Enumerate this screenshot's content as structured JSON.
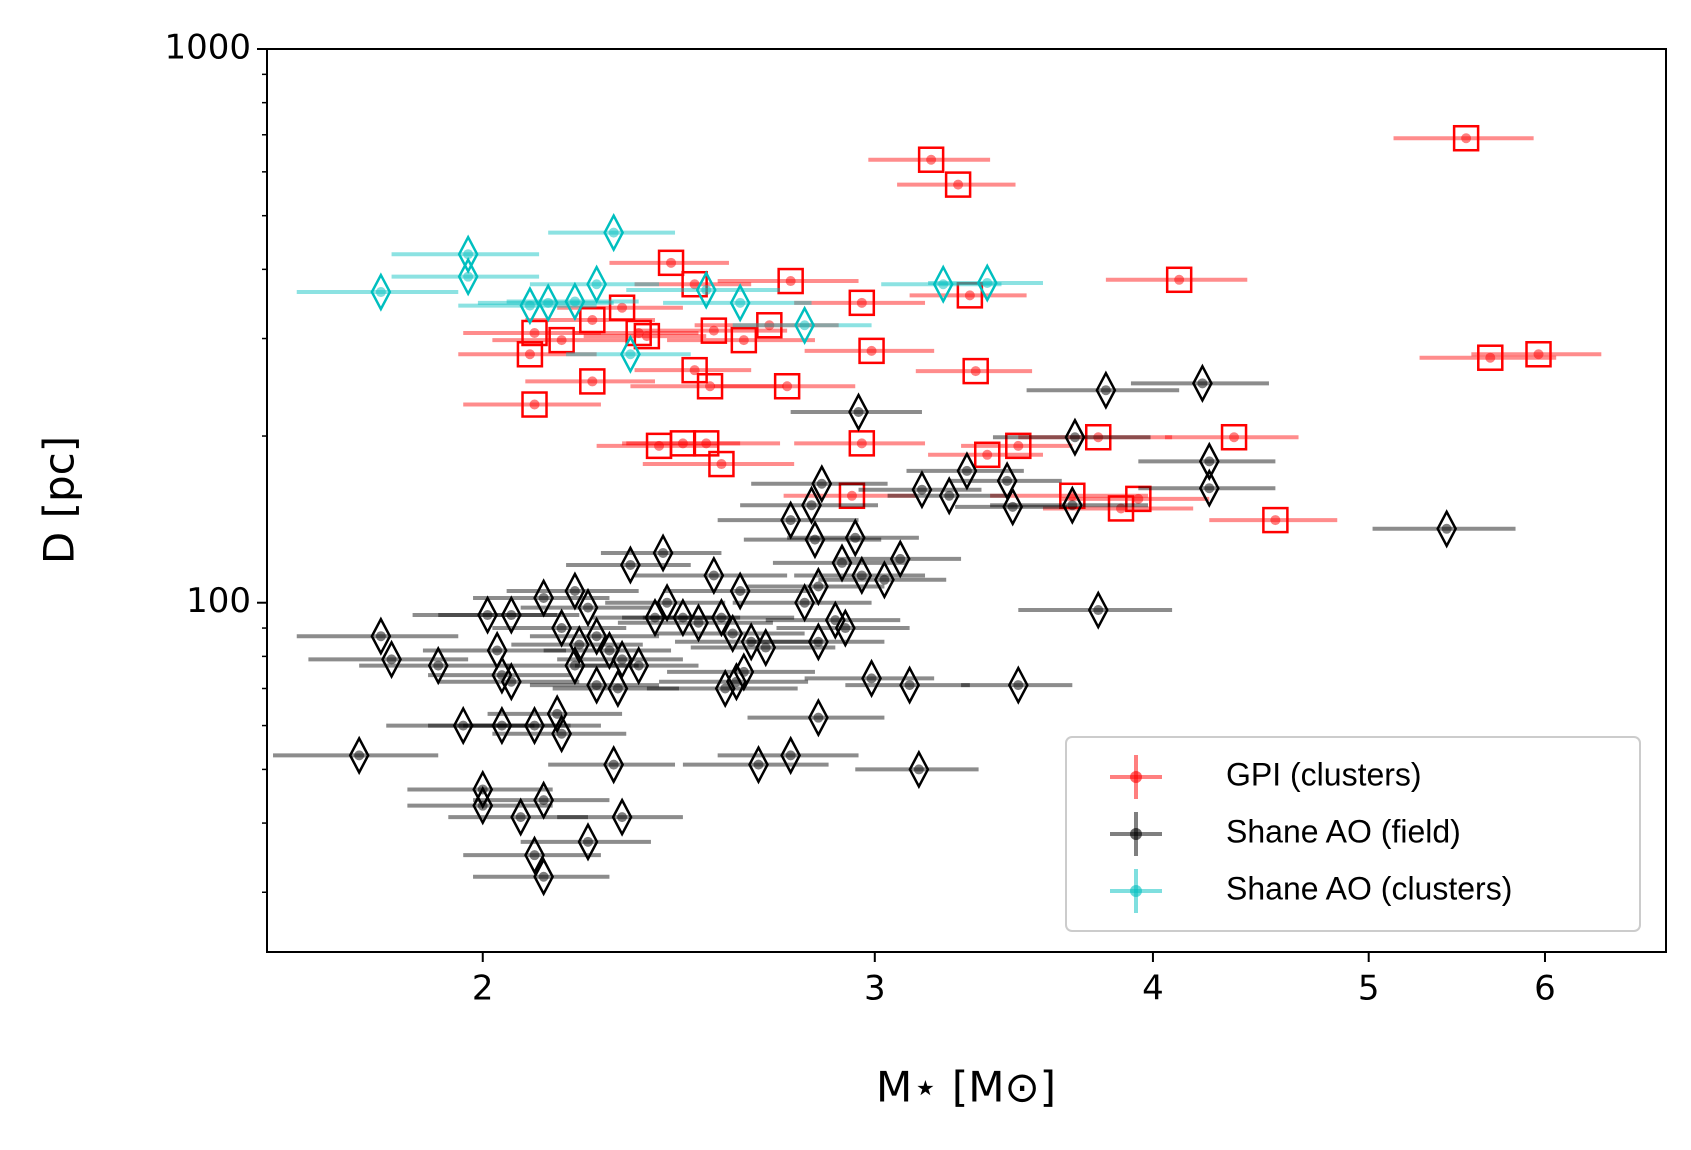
{
  "chart_data": {
    "type": "scatter",
    "xlabel": "M⋆ [M⊙]",
    "ylabel": "D [pc]",
    "xscale": "log",
    "yscale": "log",
    "xlim": [
      1.6,
      6.8
    ],
    "ylim": [
      23.4,
      1000
    ],
    "xticks": [
      2,
      3,
      4,
      5,
      6
    ],
    "yticks": [
      100,
      1000
    ],
    "yminorticks": [
      30,
      40,
      50,
      60,
      70,
      80,
      90,
      200,
      300,
      400,
      500,
      600,
      700,
      800,
      900
    ],
    "legend": "lower right",
    "series": [
      {
        "name": "GPI (clusters)",
        "color": "#ff0000",
        "marker": "square",
        "x": [
          3.18,
          3.27,
          5.53,
          2.43,
          2.75,
          2.49,
          2.96,
          3.31,
          4.11,
          2.31,
          2.24,
          2.35,
          2.37,
          2.17,
          2.11,
          2.1,
          2.54,
          2.62,
          2.69,
          2.99,
          5.67,
          5.96,
          3.33,
          2.49,
          2.24,
          2.53,
          2.74,
          2.11,
          2.4,
          2.46,
          2.52,
          2.56,
          2.96,
          3.37,
          3.48,
          3.78,
          4.35,
          2.93,
          3.68,
          3.87,
          3.94,
          4.54
        ],
        "values": [
          631,
          569,
          690,
          411,
          381,
          376,
          348,
          359,
          383,
          341,
          324,
          307,
          303,
          298,
          307,
          281,
          310,
          298,
          317,
          285,
          277,
          281,
          262,
          263,
          251,
          246,
          246,
          228,
          192,
          194,
          194,
          178,
          194,
          185,
          192,
          199,
          199,
          156,
          156,
          148,
          154,
          141
        ],
        "xerr": [
          0.2,
          0.2,
          0.4,
          0.15,
          0.2,
          0.15,
          0.2,
          0.2,
          0.3,
          0.15,
          0.15,
          0.15,
          0.15,
          0.15,
          0.15,
          0.15,
          0.2,
          0.2,
          0.2,
          0.2,
          0.4,
          0.4,
          0.2,
          0.15,
          0.15,
          0.2,
          0.2,
          0.15,
          0.15,
          0.15,
          0.2,
          0.2,
          0.2,
          0.2,
          0.2,
          0.3,
          0.3,
          0.2,
          0.3,
          0.3,
          0.3,
          0.3
        ]
      },
      {
        "name": "Shane AO (field)",
        "color": "#000000",
        "marker": "diamond",
        "x": [
          3.81,
          4.21,
          2.95,
          3.69,
          4.24,
          4.24,
          3.3,
          3.15,
          3.24,
          3.44,
          3.46,
          3.68,
          2.84,
          2.81,
          2.75,
          2.82,
          2.94,
          2.9,
          2.96,
          3.03,
          3.08,
          5.42,
          3.78,
          3.48,
          3.11,
          2.99,
          2.83,
          3.14,
          2.75,
          2.66,
          2.54,
          2.61,
          2.79,
          2.83,
          2.41,
          2.33,
          2.2,
          2.13,
          2.23,
          2.01,
          2.06,
          2.03,
          2.04,
          2.06,
          1.8,
          1.82,
          1.91,
          1.96,
          2.04,
          2.11,
          2.16,
          2.17,
          1.76,
          2.0,
          2.0,
          2.08,
          2.13,
          2.11,
          2.13,
          2.23,
          2.31,
          2.29,
          2.17,
          2.21,
          2.25,
          2.28,
          2.31,
          2.35,
          2.39,
          2.42,
          2.46,
          2.5,
          2.56,
          2.59,
          2.64,
          2.68,
          2.62,
          2.57,
          2.6,
          2.83,
          2.88,
          2.91,
          2.3,
          2.25,
          2.2
        ],
        "values": [
          242,
          249,
          221,
          199,
          180,
          161,
          173,
          160,
          156,
          166,
          149,
          150,
          164,
          150,
          141,
          130,
          131,
          118,
          112,
          110,
          120,
          136,
          97,
          71,
          71,
          73,
          62,
          50,
          53,
          51,
          112,
          105,
          100,
          107,
          123,
          117,
          105,
          102,
          98,
          95,
          95,
          82,
          74,
          72,
          87,
          79,
          77,
          60,
          60,
          60,
          63,
          58,
          53,
          46,
          43,
          41,
          44,
          35,
          32,
          37,
          41,
          51,
          90,
          84,
          87,
          82,
          79,
          77,
          94,
          100,
          94,
          92,
          94,
          88,
          85,
          83,
          75,
          70,
          72,
          85,
          93,
          90,
          70,
          71,
          77
        ],
        "xerr": [
          0.3,
          0.3,
          0.2,
          0.3,
          0.3,
          0.3,
          0.2,
          0.2,
          0.2,
          0.2,
          0.2,
          0.3,
          0.2,
          0.2,
          0.2,
          0.2,
          0.2,
          0.2,
          0.2,
          0.2,
          0.2,
          0.4,
          0.3,
          0.2,
          0.2,
          0.2,
          0.2,
          0.2,
          0.2,
          0.2,
          0.2,
          0.2,
          0.2,
          0.2,
          0.15,
          0.15,
          0.15,
          0.15,
          0.15,
          0.15,
          0.15,
          0.15,
          0.15,
          0.15,
          0.15,
          0.15,
          0.15,
          0.15,
          0.15,
          0.15,
          0.15,
          0.15,
          0.15,
          0.15,
          0.15,
          0.15,
          0.15,
          0.15,
          0.15,
          0.15,
          0.15,
          0.15,
          0.15,
          0.15,
          0.15,
          0.15,
          0.15,
          0.15,
          0.15,
          0.15,
          0.15,
          0.2,
          0.2,
          0.2,
          0.2,
          0.2,
          0.2,
          0.2,
          0.2,
          0.2,
          0.2,
          0.2,
          0.15,
          0.15,
          0.15
        ]
      },
      {
        "name": "Shane AO (clusters)",
        "color": "#00bfbf",
        "marker": "diamond",
        "x": [
          1.8,
          1.97,
          1.97,
          2.29,
          2.1,
          2.14,
          2.2,
          2.25,
          2.52,
          2.61,
          2.79,
          2.33,
          3.22,
          3.37
        ],
        "values": [
          364,
          426,
          388,
          466,
          344,
          348,
          350,
          376,
          367,
          348,
          317,
          281,
          376,
          378
        ],
        "xerr": [
          0.15,
          0.15,
          0.15,
          0.15,
          0.15,
          0.15,
          0.15,
          0.15,
          0.2,
          0.2,
          0.2,
          0.15,
          0.2,
          0.2
        ]
      }
    ]
  }
}
